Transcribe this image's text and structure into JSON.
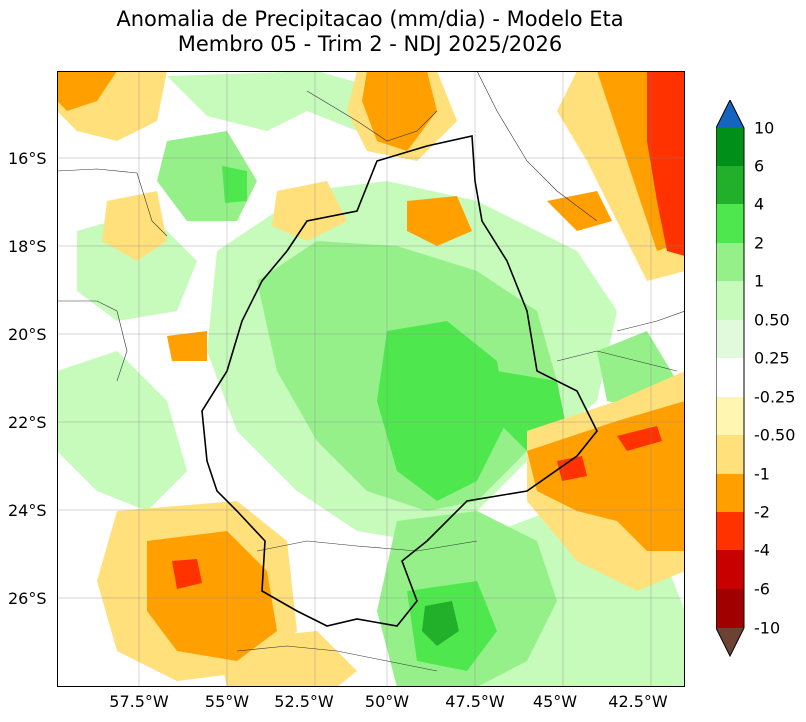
{
  "title": {
    "line1": "Anomalia de Precipitacao (mm/dia) - Modelo Eta",
    "line2": "Membro 05 - Trim 2 - NDJ 2025/2026"
  },
  "map": {
    "lat_labels": [
      "16°S",
      "18°S",
      "20°S",
      "22°S",
      "24°S",
      "26°S"
    ],
    "lon_labels": [
      "57.5°W",
      "55°W",
      "52.5°W",
      "50°W",
      "47.5°W",
      "45°W",
      "42.5°W"
    ]
  },
  "colorbar": {
    "labels": [
      "10",
      "6",
      "4",
      "2",
      "1",
      "0.50",
      "0.25",
      "-0.25",
      "-0.50",
      "-1",
      "-2",
      "-4",
      "-6",
      "-10"
    ],
    "colors": {
      "over": "#1565c0",
      "c6_10": "#00901a",
      "c4_6": "#22b02a",
      "c2_4": "#4ee84e",
      "c1_2": "#96f08a",
      "c05_1": "#c6fbbc",
      "c025_05": "#e2fadc",
      "c0": "#ffffff",
      "cm05_m025": "#fff6b2",
      "cm1_m05": "#ffe07a",
      "cm2_m1": "#ffa000",
      "cm4_m2": "#ff3200",
      "cm6_m4": "#c80000",
      "cm10_m6": "#a00000",
      "under": "#6b4234"
    }
  }
}
